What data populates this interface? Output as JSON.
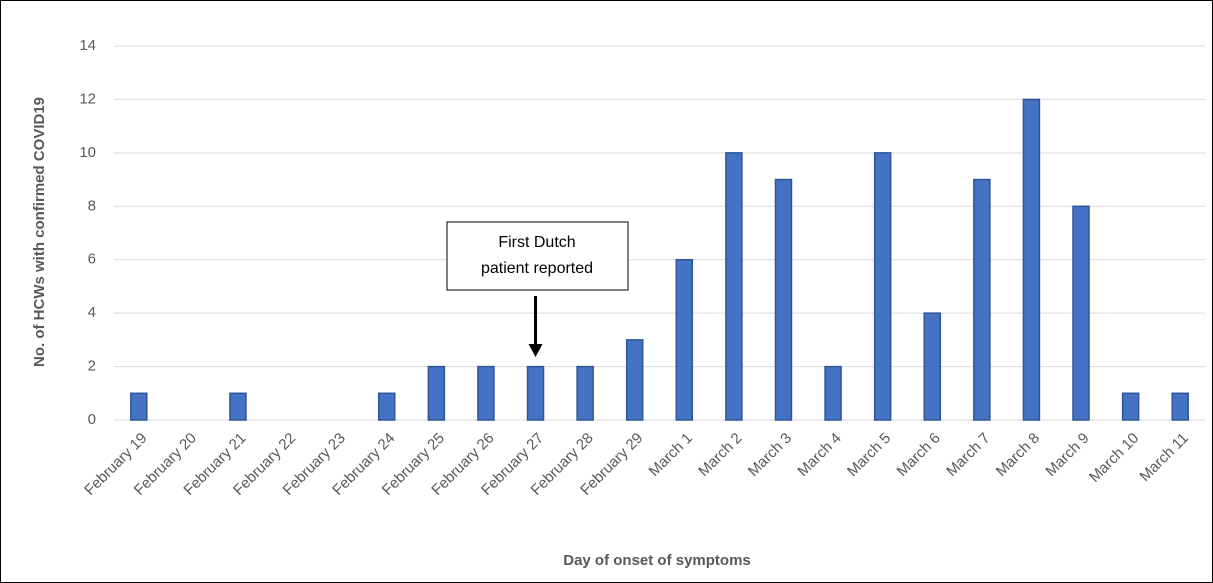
{
  "chart_data": {
    "type": "bar",
    "categories": [
      "February 19",
      "February 20",
      "February 21",
      "February 22",
      "February 23",
      "February 24",
      "February 25",
      "February 26",
      "February 27",
      "February 28",
      "February 29",
      "March 1",
      "March 2",
      "March 3",
      "March 4",
      "March 5",
      "March 6",
      "March 7",
      "March 8",
      "March 9",
      "March 10",
      "March 11"
    ],
    "values": [
      1,
      0,
      1,
      0,
      0,
      1,
      2,
      2,
      2,
      2,
      3,
      6,
      10,
      9,
      2,
      10,
      4,
      9,
      12,
      8,
      1,
      1
    ],
    "color": "#4472c4",
    "ylim": [
      0,
      14
    ],
    "yticks": [
      0,
      2,
      4,
      6,
      8,
      10,
      12,
      14
    ],
    "grid": true,
    "y_label": "No. of HCWs with confirmed COVID19",
    "x_label": "Day of onset of symptoms",
    "annotation": {
      "lines": [
        "First Dutch",
        "patient reported"
      ],
      "category_index": 8
    }
  }
}
